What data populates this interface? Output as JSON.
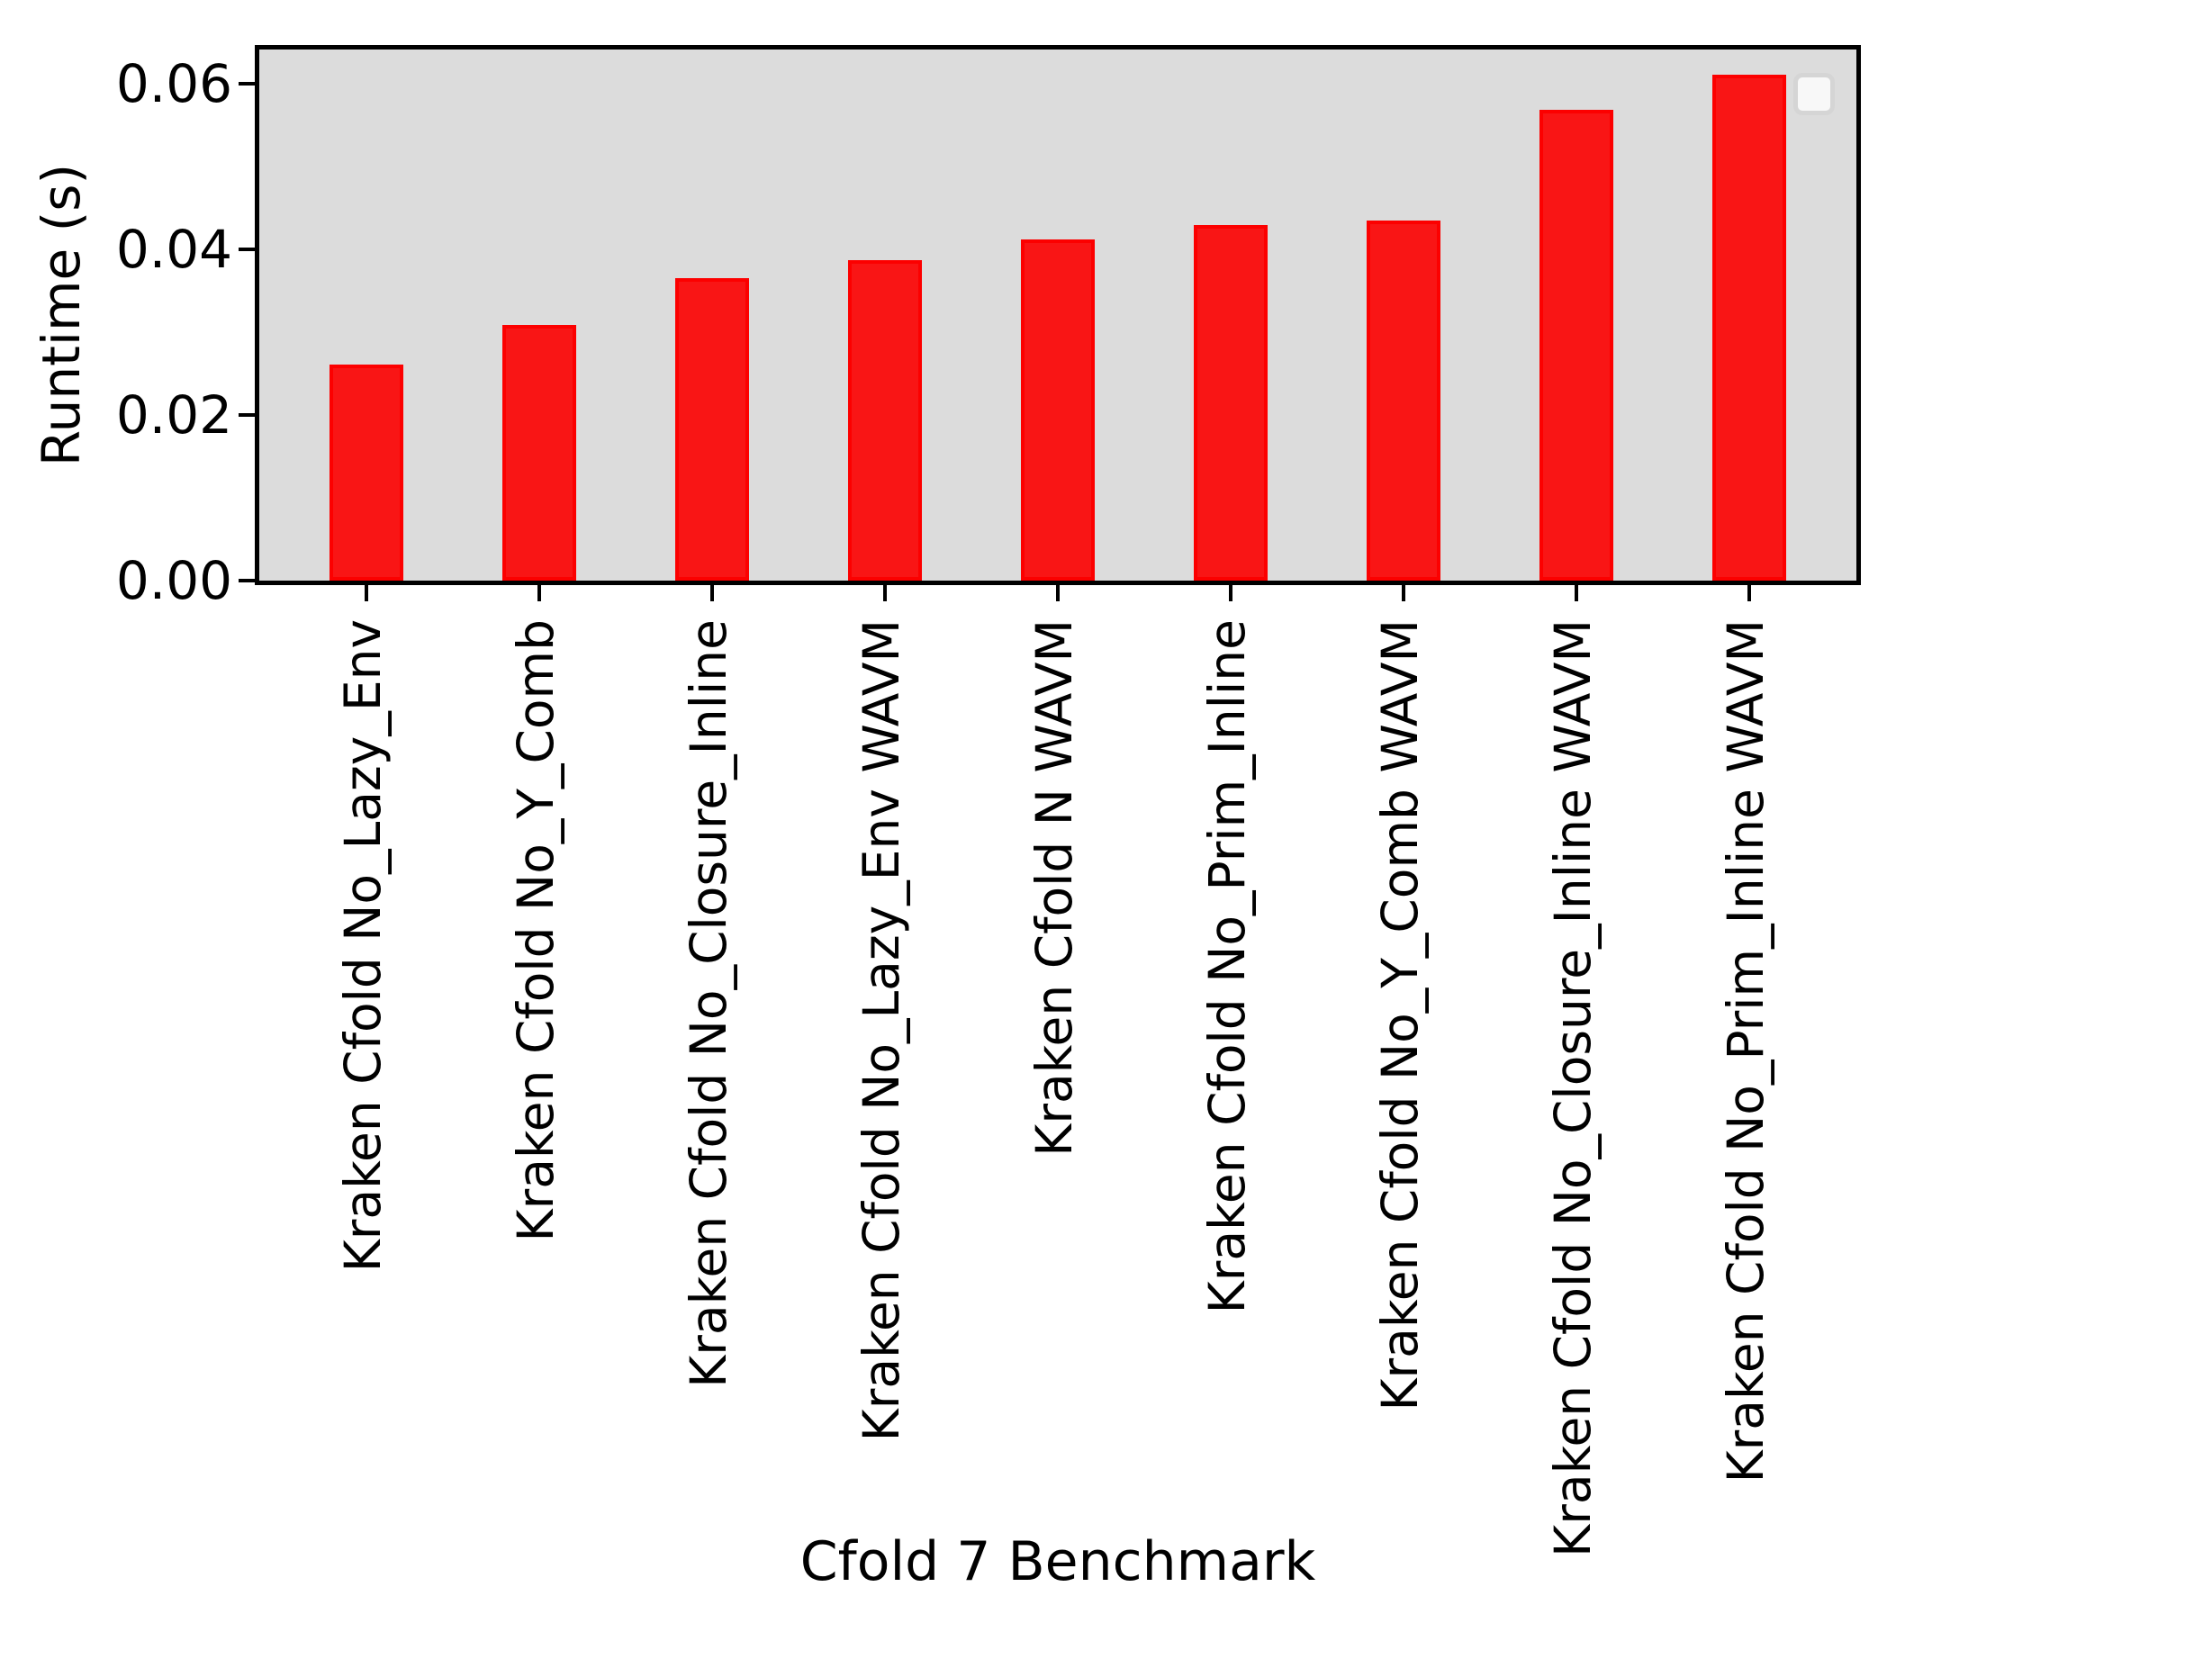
{
  "chart_data": {
    "type": "bar",
    "title": "",
    "xlabel": "Cfold 7 Benchmark",
    "ylabel": "Runtime (s)",
    "categories": [
      "Kraken Cfold No_Lazy_Env",
      "Kraken Cfold No_Y_Comb",
      "Kraken Cfold No_Closure_Inline",
      "Kraken Cfold No_Lazy_Env WAVM",
      "Kraken Cfold N WAVM",
      "Kraken Cfold No_Prim_Inline",
      "Kraken Cfold No_Y_Comb WAVM",
      "Kraken Cfold No_Closure_Inline WAVM",
      "Kraken Cfold No_Prim_Inline WAVM"
    ],
    "values": [
      0.0261,
      0.0309,
      0.0365,
      0.0387,
      0.0412,
      0.0429,
      0.0435,
      0.0568,
      0.0611
    ],
    "ytick_values": [
      0.0,
      0.02,
      0.04,
      0.06
    ],
    "ytick_labels": [
      "0.00",
      "0.02",
      "0.04",
      "0.06"
    ],
    "ylim": [
      0,
      0.0641
    ],
    "grid": false,
    "legend": {
      "position": "upper-right",
      "entries": []
    },
    "colors": {
      "bar_fill": "#f91515",
      "bar_edge": "#fc0000",
      "plot_background": "#dcdcdc",
      "axis": "#000000"
    }
  }
}
